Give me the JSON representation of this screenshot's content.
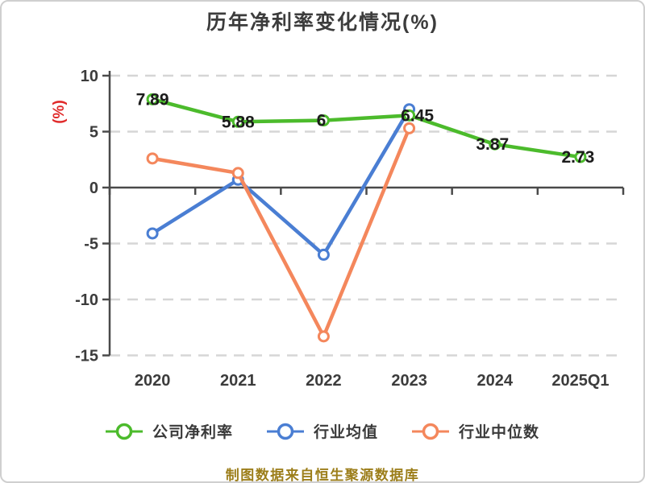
{
  "title": "历年净利率变化情况(%)",
  "y_axis_label": "(%)",
  "footer": "制图数据来自恒生聚源数据库",
  "colors": {
    "title_text": "#3c3c3c",
    "axis_text": "#3c3c3c",
    "axis_line": "#4a4a4a",
    "grid_line": "#d6d6d6",
    "data_label": "#1c1c1c",
    "y_label_red": "#e02a2a",
    "footer_gold": "#9c7e1a",
    "series_green": "#4cbb2c",
    "series_blue": "#4a7ed3",
    "series_orange": "#f4875c"
  },
  "chart_data": {
    "type": "line",
    "title": "历年净利率变化情况(%)",
    "xlabel": "",
    "ylabel": "(%)",
    "categories": [
      "2020",
      "2021",
      "2022",
      "2023",
      "2024",
      "2025Q1"
    ],
    "y_ticks": [
      10,
      5,
      0,
      -5,
      -10,
      -15
    ],
    "ylim": [
      -15,
      10
    ],
    "grid": "horizontal dashed, solid dark line at 0",
    "legend_position": "bottom",
    "marker": "hollow circle, white fill",
    "series": [
      {
        "name": "公司净利率",
        "color": "#4cbb2c",
        "values": [
          7.89,
          5.88,
          6,
          6.45,
          3.87,
          2.73
        ],
        "labels": [
          "7.89",
          "5.88",
          "6",
          "6.45",
          "3.87",
          "2.73"
        ]
      },
      {
        "name": "行业均值",
        "color": "#4a7ed3",
        "values": [
          -4.1,
          0.7,
          -6.0,
          7.0
        ],
        "labels": []
      },
      {
        "name": "行业中位数",
        "color": "#f4875c",
        "values": [
          2.6,
          1.3,
          -13.3,
          5.3
        ],
        "labels": []
      }
    ]
  }
}
